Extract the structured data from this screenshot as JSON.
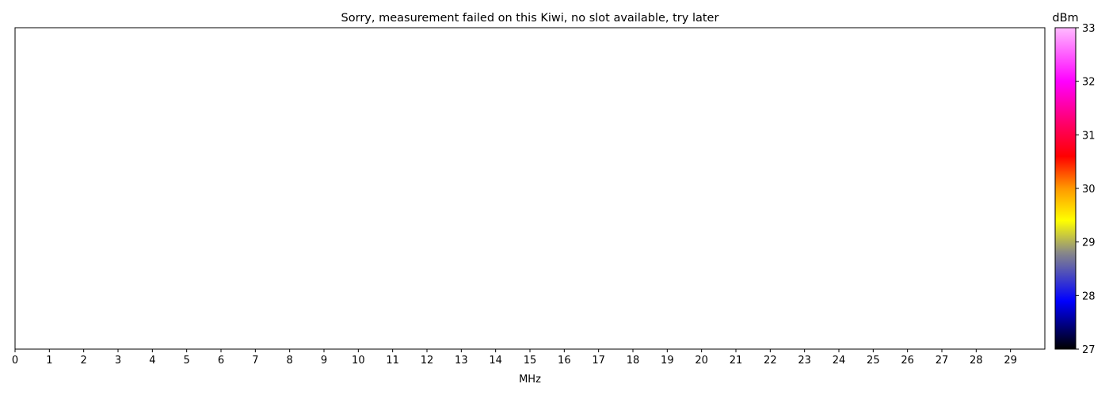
{
  "chart_data": {
    "type": "heatmap",
    "title": "Sorry, measurement failed on this Kiwi, no slot available, try later",
    "xlabel": "MHz",
    "ylabel": "",
    "xlim": [
      0,
      30
    ],
    "x_ticks": [
      0,
      1,
      2,
      3,
      4,
      5,
      6,
      7,
      8,
      9,
      10,
      11,
      12,
      13,
      14,
      15,
      16,
      17,
      18,
      19,
      20,
      21,
      22,
      23,
      24,
      25,
      26,
      27,
      28,
      29
    ],
    "values": [],
    "y_ticks": [],
    "grid": false,
    "colorbar": {
      "label": "dBm",
      "range": [
        27,
        33
      ],
      "ticks": [
        27,
        28,
        29,
        30,
        31,
        32,
        33
      ],
      "colormap_stops": [
        {
          "value": 27.0,
          "color": "#000000"
        },
        {
          "value": 27.9,
          "color": "#0000ff"
        },
        {
          "value": 28.8,
          "color": "#888888"
        },
        {
          "value": 29.4,
          "color": "#ffff00"
        },
        {
          "value": 30.0,
          "color": "#ff9900"
        },
        {
          "value": 30.6,
          "color": "#ff0000"
        },
        {
          "value": 31.2,
          "color": "#ff0066"
        },
        {
          "value": 32.0,
          "color": "#ff00ff"
        },
        {
          "value": 33.0,
          "color": "#ffbbff"
        }
      ]
    }
  }
}
